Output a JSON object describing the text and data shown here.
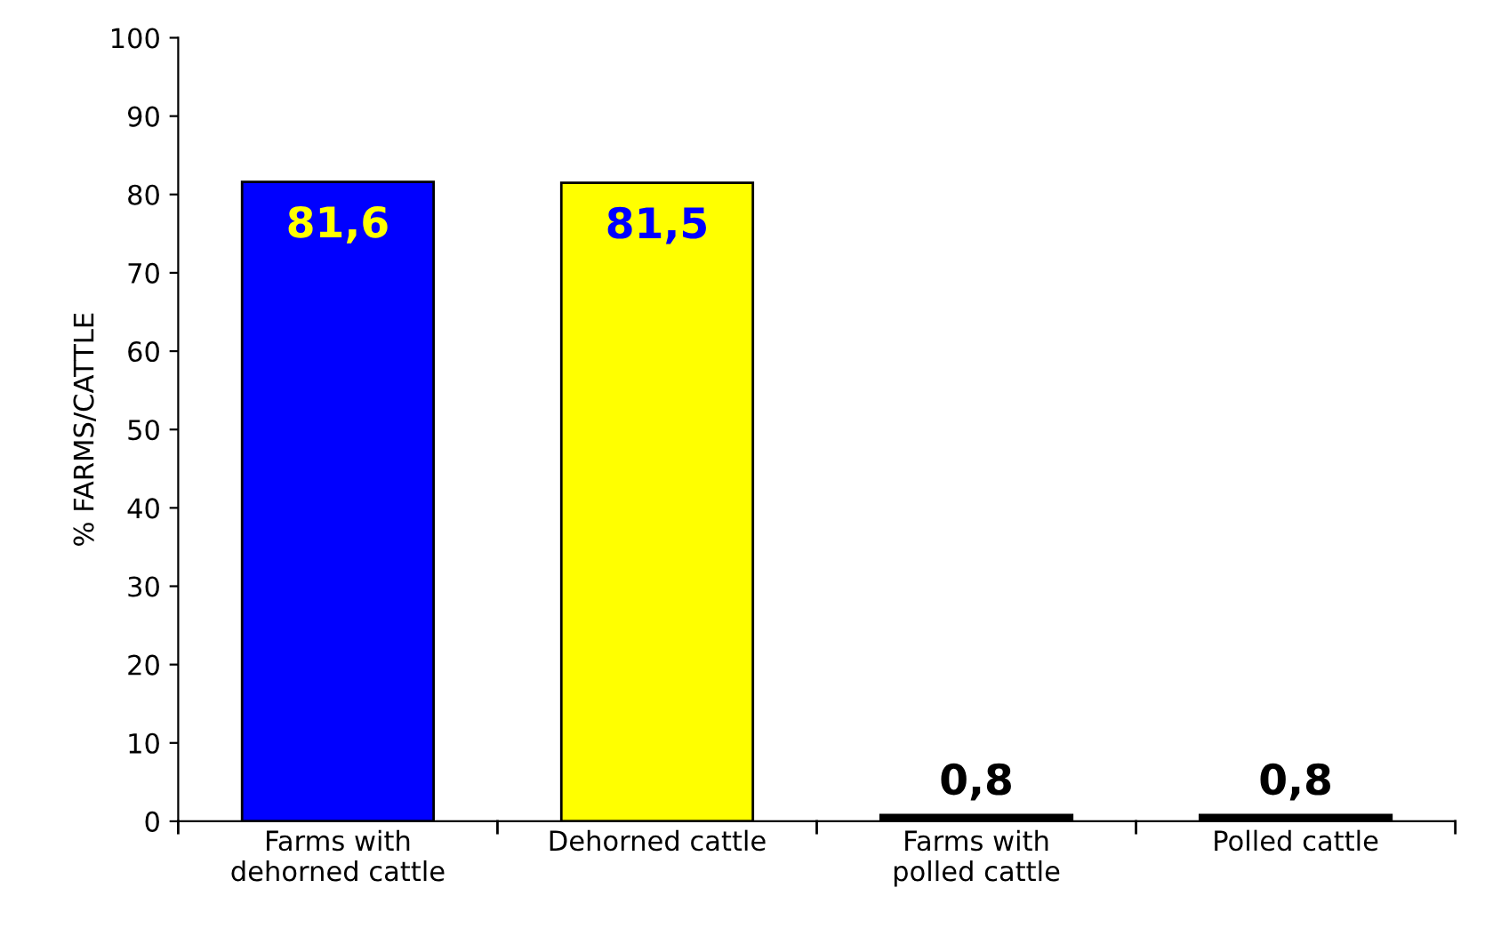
{
  "chart_data": {
    "type": "bar",
    "ylabel": "% FARMS/CATTLE",
    "categories": [
      "Farms with dehorned cattle",
      "Dehorned cattle",
      "Farms with polled cattle",
      "Polled cattle"
    ],
    "values": [
      81.6,
      81.5,
      0.8,
      0.8
    ],
    "colors": [
      "#0000ff",
      "#ffff00",
      "#000000",
      "#000000"
    ],
    "value_labels": [
      "81,6",
      "81,5",
      "0,8",
      "0,8"
    ],
    "ylim": [
      0,
      100
    ],
    "yticks": [
      0,
      10,
      20,
      30,
      40,
      50,
      60,
      70,
      80,
      90,
      100
    ],
    "grid": false
  }
}
